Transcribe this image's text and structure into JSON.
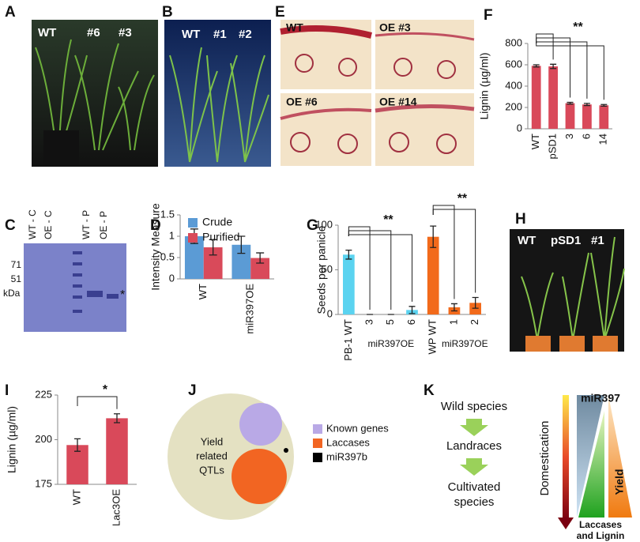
{
  "chart_data": [
    {
      "type": "bar",
      "title": "F",
      "ylabel": "Lignin (µg/ml)",
      "categories": [
        "WT",
        "pSD1",
        "3",
        "6",
        "14"
      ],
      "values": [
        590,
        585,
        240,
        228,
        220
      ],
      "errors": [
        10,
        20,
        8,
        10,
        8
      ],
      "color": "#d9495a",
      "ylim": [
        0,
        800
      ],
      "yticks": [
        0,
        200,
        400,
        600,
        800
      ],
      "annotations": [
        "**"
      ]
    },
    {
      "type": "bar",
      "title": "D",
      "ylabel": "Intensity Measure",
      "categories": [
        "WT",
        "miR397OE"
      ],
      "series": [
        {
          "name": "Crude",
          "color": "#5b9bd5",
          "values": [
            1.0,
            0.8
          ],
          "errors": [
            0.17,
            0.2
          ]
        },
        {
          "name": "Purified",
          "color": "#d94a5a",
          "values": [
            0.74,
            0.49
          ],
          "errors": [
            0.18,
            0.12
          ]
        }
      ],
      "ylim": [
        0,
        1.5
      ],
      "yticks": [
        0,
        0.5,
        1,
        1.5
      ]
    },
    {
      "type": "bar",
      "title": "G",
      "ylabel": "Seeds per panicle",
      "categories": [
        "PB-1 WT",
        "3",
        "5",
        "6",
        "WP WT",
        "1",
        "2"
      ],
      "values": [
        67,
        0,
        0,
        5,
        87,
        8,
        13
      ],
      "errors": [
        5,
        0,
        0,
        4,
        12,
        4,
        6
      ],
      "colors": [
        "#5bd3f0",
        "#5bd3f0",
        "#5bd3f0",
        "#5bd3f0",
        "#f26a1b",
        "#f26a1b",
        "#f26a1b"
      ],
      "group_labels": [
        "miR397OE",
        "miR397OE"
      ],
      "ylim": [
        0,
        100
      ],
      "yticks": [
        0,
        50,
        100
      ],
      "annotations": [
        "**",
        "**"
      ]
    },
    {
      "type": "bar",
      "title": "I",
      "ylabel": "Lignin (µg/ml)",
      "categories": [
        "WT",
        "Lac3OE"
      ],
      "values": [
        197,
        212
      ],
      "errors": [
        3.5,
        2.5
      ],
      "color": "#d9495a",
      "ylim": [
        175,
        225
      ],
      "yticks": [
        175,
        200,
        225
      ],
      "annotations": [
        "*"
      ]
    }
  ],
  "panels": {
    "A": {
      "letter": "A",
      "labels": [
        "WT",
        "#6",
        "#3"
      ]
    },
    "B": {
      "letter": "B",
      "labels": [
        "WT",
        "#1",
        "#2"
      ]
    },
    "C": {
      "letter": "C",
      "lanes": [
        "WT - C",
        "OE - C",
        "WT - P",
        "OE - P"
      ],
      "markers": [
        "71",
        "51"
      ],
      "unit": "kDa",
      "star": "*"
    },
    "E": {
      "letter": "E",
      "labels": [
        "WT",
        "OE #3",
        "OE #6",
        "OE #14"
      ]
    },
    "H": {
      "letter": "H",
      "labels": [
        "WT",
        "pSD1",
        "#1"
      ]
    },
    "J": {
      "letter": "J",
      "circle_text": [
        "Yield",
        "related",
        "QTLs"
      ],
      "legend": [
        "Known genes",
        "Laccases",
        "miR397b"
      ]
    },
    "K": {
      "letter": "K",
      "steps": [
        "Wild species",
        "Landraces",
        "Cultivated",
        "species"
      ],
      "axis": "Domestication",
      "top": "miR397",
      "right": "Yield",
      "bottom": [
        "Laccases",
        "and Lignin"
      ]
    }
  }
}
